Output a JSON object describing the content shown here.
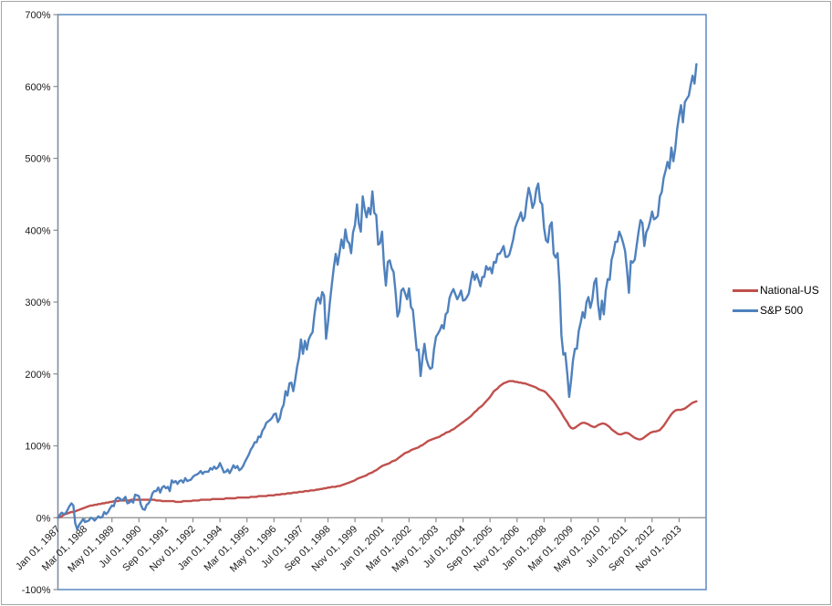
{
  "chart_data": {
    "type": "line",
    "title": "",
    "grid": "off",
    "legend_position": "right",
    "x_unit": "months since Jan 1987 (monthly data)",
    "x_start_label": "Jan 01, 1987",
    "x_tick_interval_months": 14,
    "x_axis_max_months": 336,
    "x_tick_labels": [
      "Jan 01, 1987",
      "Mar 01, 1988",
      "May 01, 1989",
      "Jul 01, 1990",
      "Sep 01, 1991",
      "Nov 01, 1992",
      "Jan 01, 1994",
      "Mar 01, 1995",
      "May 01, 1996",
      "Jul 01, 1997",
      "Sep 01, 1998",
      "Nov 01, 1999",
      "Jan 01, 2001",
      "Mar 01, 2002",
      "May 01, 2003",
      "Jul 01, 2004",
      "Sep 01, 2005",
      "Nov 01, 2006",
      "Jan 01, 2008",
      "Mar 01, 2009",
      "May 01, 2010",
      "Jul 01, 2011",
      "Sep 01, 2012",
      "Nov 01, 2013"
    ],
    "y_axis": {
      "min": -100,
      "max": 700,
      "step": 100,
      "format": "percent",
      "tick_labels": [
        "700%",
        "600%",
        "500%",
        "400%",
        "300%",
        "200%",
        "100%",
        "0%",
        "-100%"
      ]
    },
    "series": [
      {
        "name": "National-US",
        "color": "#C0504D",
        "start": "1987-01",
        "interval": "monthly",
        "unit": "% change since Jan 1987",
        "values": [
          0,
          1,
          2,
          4,
          5,
          6,
          7,
          8,
          8,
          9,
          10,
          11,
          12,
          13,
          14,
          15,
          16,
          17,
          17,
          18,
          18,
          19,
          19,
          20,
          20,
          21,
          21,
          22,
          22,
          23,
          23,
          23,
          24,
          24,
          24,
          24,
          24,
          24,
          25,
          25,
          25,
          25,
          25,
          25,
          25,
          25,
          25,
          25,
          25,
          25,
          25,
          24,
          24,
          24,
          23,
          23,
          23,
          23,
          23,
          23,
          23,
          22,
          22,
          22,
          22,
          23,
          23,
          23,
          23,
          23,
          24,
          24,
          24,
          24,
          25,
          25,
          25,
          25,
          25,
          25,
          26,
          26,
          26,
          26,
          26,
          26,
          26,
          27,
          27,
          27,
          27,
          27,
          27,
          28,
          28,
          28,
          28,
          28,
          28,
          28,
          29,
          29,
          29,
          29,
          30,
          30,
          30,
          30,
          30,
          31,
          31,
          31,
          31,
          32,
          32,
          32,
          33,
          33,
          33,
          34,
          34,
          34,
          35,
          35,
          35,
          36,
          36,
          36,
          37,
          37,
          37,
          38,
          38,
          38,
          39,
          39,
          40,
          40,
          41,
          41,
          42,
          42,
          43,
          43,
          43,
          44,
          44,
          45,
          46,
          47,
          48,
          49,
          50,
          51,
          52,
          54,
          55,
          56,
          57,
          58,
          59,
          61,
          62,
          63,
          65,
          66,
          68,
          70,
          72,
          73,
          74,
          75,
          76,
          78,
          79,
          80,
          82,
          84,
          86,
          88,
          90,
          91,
          92,
          94,
          95,
          96,
          97,
          98,
          100,
          101,
          103,
          105,
          107,
          108,
          109,
          110,
          111,
          112,
          113,
          115,
          116,
          118,
          119,
          120,
          122,
          123,
          125,
          127,
          129,
          131,
          133,
          135,
          137,
          139,
          141,
          144,
          147,
          149,
          152,
          154,
          156,
          159,
          162,
          165,
          168,
          172,
          176,
          178,
          180,
          183,
          185,
          187,
          188,
          189,
          190,
          190,
          190,
          189,
          189,
          188,
          188,
          187,
          187,
          186,
          185,
          184,
          183,
          182,
          181,
          179,
          178,
          177,
          176,
          174,
          171,
          168,
          165,
          162,
          158,
          154,
          150,
          146,
          141,
          137,
          133,
          128,
          125,
          124,
          125,
          127,
          129,
          131,
          132,
          132,
          131,
          130,
          128,
          127,
          126,
          127,
          129,
          130,
          131,
          131,
          130,
          128,
          126,
          123,
          121,
          119,
          117,
          116,
          116,
          117,
          118,
          118,
          117,
          115,
          113,
          111,
          110,
          109,
          109,
          110,
          112,
          114,
          116,
          118,
          119,
          120,
          120,
          121,
          122,
          125,
          128,
          132,
          136,
          140,
          144,
          147,
          149,
          150,
          150,
          150,
          151,
          152,
          154,
          156,
          158,
          160,
          161,
          162
        ]
      },
      {
        "name": "S&P 500",
        "color": "#4F81BD",
        "start": "1987-01",
        "interval": "monthly",
        "unit": "% change since Jan 1987",
        "values": [
          0,
          4,
          7,
          5,
          6,
          11,
          16,
          20,
          17,
          -8,
          -16,
          -10,
          -6,
          -2,
          -6,
          -5,
          -4,
          0,
          -1,
          -4,
          -1,
          2,
          0,
          1,
          8,
          5,
          8,
          13,
          17,
          16,
          26,
          28,
          27,
          24,
          26,
          29,
          20,
          21,
          24,
          21,
          32,
          31,
          30,
          18,
          12,
          11,
          18,
          20,
          25,
          34,
          37,
          37,
          42,
          35,
          42,
          44,
          41,
          43,
          37,
          52,
          49,
          51,
          47,
          51,
          52,
          49,
          55,
          51,
          52,
          53,
          57,
          59,
          60,
          62,
          65,
          61,
          64,
          64,
          64,
          69,
          67,
          71,
          68,
          70,
          76,
          70,
          63,
          64,
          67,
          62,
          67,
          73,
          69,
          72,
          66,
          68,
          72,
          78,
          83,
          88,
          95,
          99,
          105,
          105,
          113,
          112,
          121,
          125,
          132,
          134,
          136,
          139,
          144,
          145,
          133,
          138,
          151,
          157,
          176,
          170,
          187,
          188,
          176,
          192,
          210,
          223,
          248,
          228,
          246,
          234,
          248,
          254,
          258,
          283,
          302,
          306,
          298,
          314,
          309,
          249,
          271,
          301,
          325,
          348,
          367,
          352,
          369,
          387,
          375,
          401,
          385,
          382,
          368,
          397,
          407,
          436,
          409,
          398,
          447,
          430,
          418,
          431,
          422,
          454,
          424,
          421,
          380,
          382,
          398,
          352,
          323,
          356,
          358,
          347,
          342,
          314,
          280,
          287,
          316,
          319,
          312,
          304,
          319,
          293,
          289,
          261,
          233,
          234,
          197,
          223,
          242,
          221,
          212,
          207,
          209,
          235,
          252,
          256,
          261,
          268,
          263,
          283,
          286,
          306,
          313,
          318,
          311,
          304,
          309,
          316,
          302,
          303,
          307,
          312,
          328,
          342,
          331,
          339,
          331,
          322,
          335,
          335,
          350,
          345,
          348,
          340,
          356,
          355,
          367,
          367,
          372,
          378,
          363,
          363,
          366,
          376,
          387,
          403,
          411,
          417,
          425,
          413,
          418,
          441,
          459,
          448,
          431,
          438,
          457,
          465,
          440,
          436,
          403,
          386,
          383,
          406,
          411,
          367,
          362,
          368,
          325,
          254,
          227,
          229,
          201,
          168,
          191,
          219,
          235,
          235,
          260,
          272,
          286,
          278,
          300,
          307,
          292,
          303,
          327,
          333,
          297,
          276,
          302,
          283,
          316,
          332,
          331,
          359,
          369,
          384,
          384,
          398,
          391,
          382,
          371,
          345,
          313,
          357,
          355,
          359,
          379,
          398,
          414,
          410,
          378,
          397,
          403,
          413,
          426,
          415,
          417,
          420,
          447,
          453,
          473,
          483,
          495,
          486,
          515,
          496,
          514,
          541,
          559,
          574,
          550,
          578,
          583,
          587,
          602,
          615,
          604,
          631
        ]
      }
    ]
  },
  "legend": {
    "items": [
      {
        "label": "National-US"
      },
      {
        "label": "S&P 500"
      }
    ]
  },
  "colors": {
    "background": "#FFFFFF",
    "outer_border": "#A6A6A6",
    "plot_border": "#4F81BD",
    "axis": "#8C8C8C",
    "tick_text": "#1A1A1A",
    "series_national_us": "#C0504D",
    "series_sp500": "#4F81BD"
  }
}
